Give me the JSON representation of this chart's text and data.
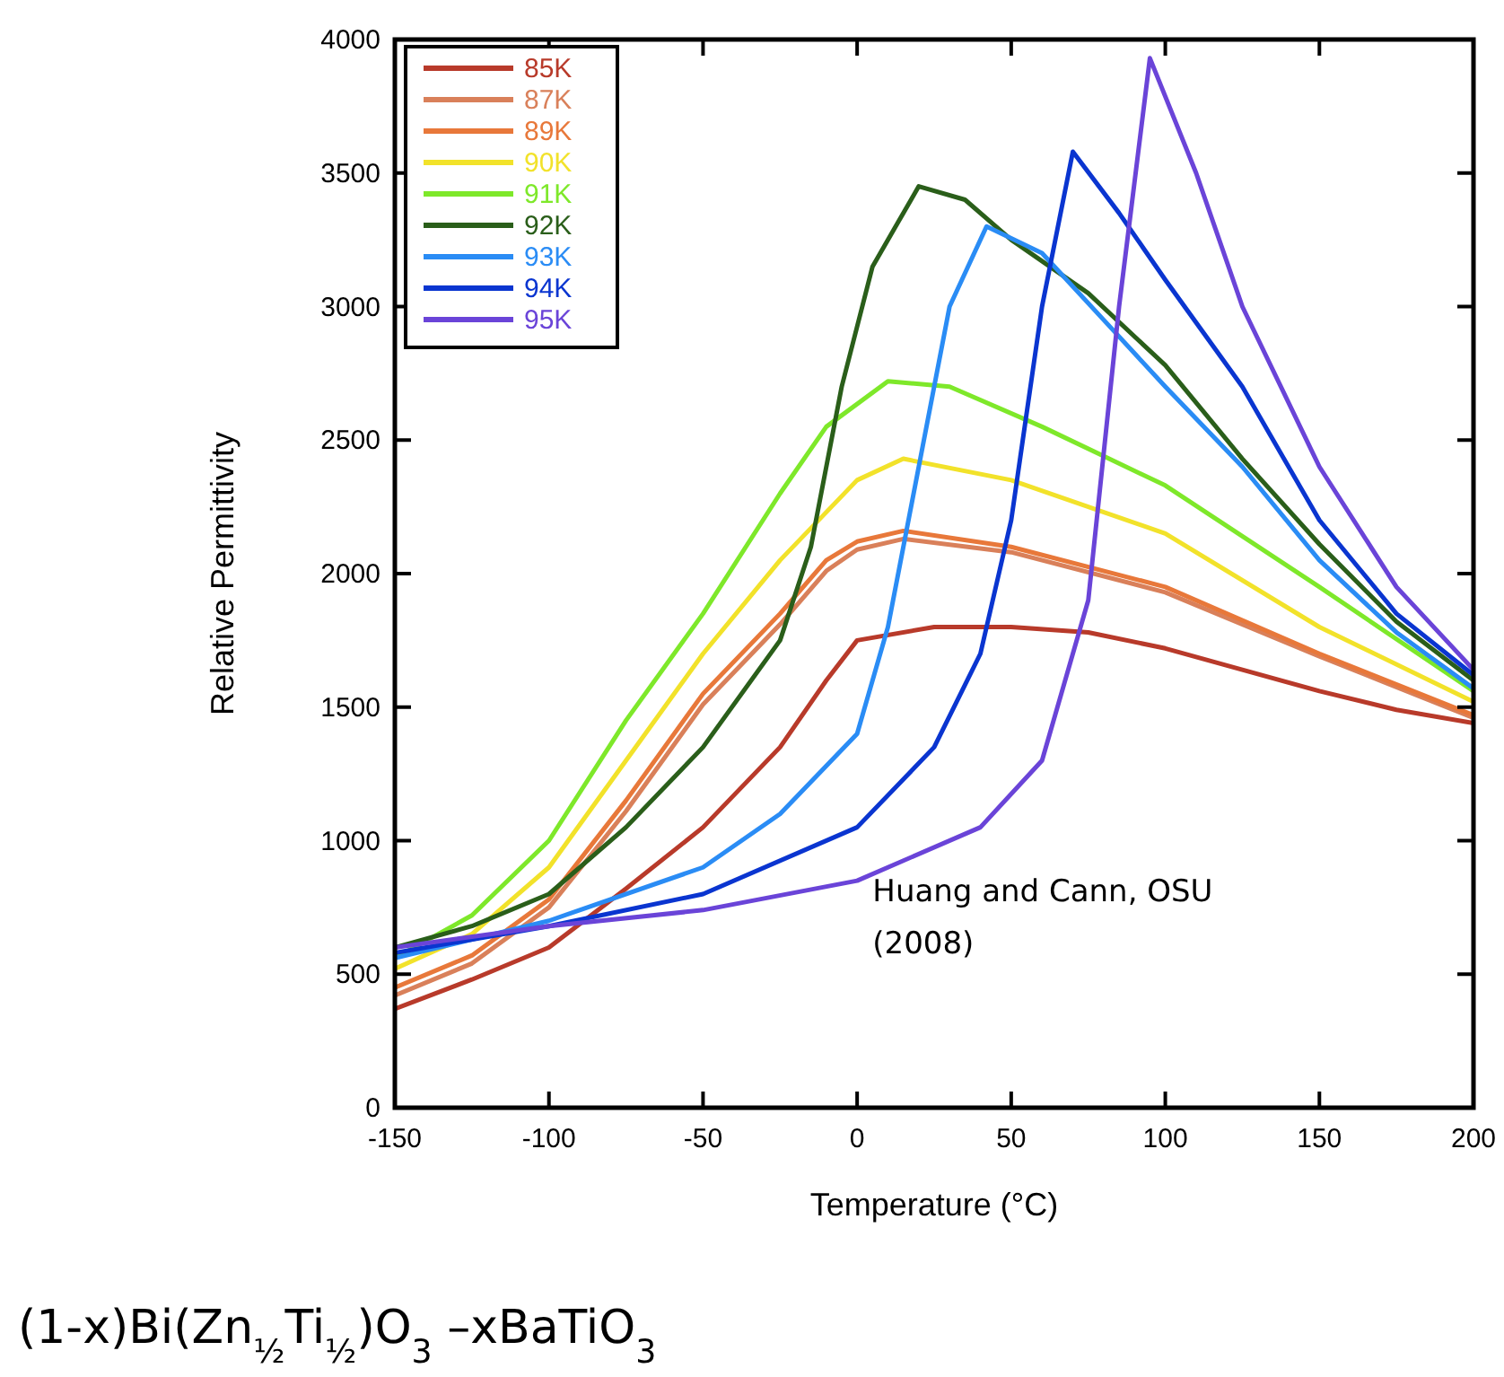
{
  "chart_data": {
    "type": "line",
    "xlabel": "Temperature (°C)",
    "ylabel": "Relative Permittivity",
    "xlim": [
      -150,
      200
    ],
    "xticks": [
      -150,
      -100,
      -50,
      0,
      50,
      100,
      150,
      200
    ],
    "ylim": [
      0,
      4000
    ],
    "yticks": [
      0,
      500,
      1000,
      1500,
      2000,
      2500,
      3000,
      3500,
      4000
    ],
    "grid": false,
    "legend": "top left",
    "marker": "none",
    "line_style": "solid",
    "annotations": [
      "Huang and Cann, OSU (2008)",
      "(1-x)Bi(Zn$_{½}$Ti$_{½}$)O$_{3}$ –xBaTiO$_{3}$"
    ],
    "series": [
      {
        "name": "85K",
        "color": "#b83a2a",
        "x": [
          -150,
          -125,
          -100,
          -75,
          -50,
          -25,
          -10,
          0,
          25,
          50,
          75,
          100,
          125,
          150,
          175,
          200
        ],
        "values": [
          370,
          480,
          600,
          820,
          1050,
          1350,
          1600,
          1750,
          1800,
          1800,
          1780,
          1720,
          1640,
          1560,
          1490,
          1440
        ]
      },
      {
        "name": "87K",
        "color": "#d9805a",
        "x": [
          -150,
          -125,
          -100,
          -75,
          -50,
          -25,
          -10,
          0,
          15,
          50,
          100,
          150,
          200
        ],
        "values": [
          420,
          540,
          750,
          1110,
          1510,
          1810,
          2010,
          2090,
          2130,
          2080,
          1930,
          1690,
          1460
        ]
      },
      {
        "name": "89K",
        "color": "#e8783a",
        "x": [
          -150,
          -125,
          -100,
          -75,
          -50,
          -25,
          -10,
          0,
          15,
          50,
          100,
          150,
          200
        ],
        "values": [
          450,
          570,
          780,
          1150,
          1550,
          1850,
          2050,
          2120,
          2160,
          2100,
          1950,
          1700,
          1470
        ]
      },
      {
        "name": "90K",
        "color": "#f2e22a",
        "x": [
          -150,
          -125,
          -100,
          -75,
          -50,
          -25,
          0,
          15,
          50,
          100,
          150,
          200
        ],
        "values": [
          520,
          650,
          900,
          1300,
          1700,
          2050,
          2350,
          2430,
          2350,
          2150,
          1800,
          1520
        ]
      },
      {
        "name": "91K",
        "color": "#7ee82a",
        "x": [
          -150,
          -125,
          -100,
          -75,
          -50,
          -25,
          -10,
          10,
          30,
          60,
          100,
          150,
          200
        ],
        "values": [
          560,
          720,
          1000,
          1450,
          1850,
          2300,
          2550,
          2720,
          2700,
          2550,
          2330,
          1950,
          1560
        ]
      },
      {
        "name": "92K",
        "color": "#2a5e1a",
        "x": [
          -150,
          -125,
          -100,
          -75,
          -50,
          -25,
          -15,
          -5,
          5,
          20,
          35,
          50,
          75,
          100,
          125,
          150,
          175,
          200
        ],
        "values": [
          600,
          680,
          800,
          1050,
          1350,
          1750,
          2100,
          2700,
          3150,
          3450,
          3400,
          3250,
          3050,
          2780,
          2430,
          2110,
          1820,
          1600
        ]
      },
      {
        "name": "93K",
        "color": "#2a8cf5",
        "x": [
          -150,
          -100,
          -50,
          -25,
          0,
          10,
          20,
          30,
          42,
          60,
          80,
          100,
          125,
          150,
          175,
          200
        ],
        "values": [
          560,
          700,
          900,
          1100,
          1400,
          1800,
          2400,
          3000,
          3300,
          3200,
          2950,
          2700,
          2400,
          2050,
          1780,
          1570
        ]
      },
      {
        "name": "94K",
        "color": "#0a35d0",
        "x": [
          -150,
          -100,
          -50,
          0,
          25,
          40,
          50,
          60,
          70,
          85,
          100,
          125,
          150,
          175,
          200
        ],
        "values": [
          580,
          680,
          800,
          1050,
          1350,
          1700,
          2200,
          3000,
          3580,
          3350,
          3100,
          2700,
          2200,
          1850,
          1620
        ]
      },
      {
        "name": "95K",
        "color": "#6a44d8",
        "x": [
          -150,
          -100,
          -50,
          0,
          40,
          60,
          75,
          85,
          95,
          110,
          125,
          150,
          175,
          200
        ],
        "values": [
          600,
          680,
          740,
          850,
          1050,
          1300,
          1900,
          3000,
          3930,
          3500,
          3000,
          2400,
          1950,
          1640
        ]
      }
    ]
  }
}
